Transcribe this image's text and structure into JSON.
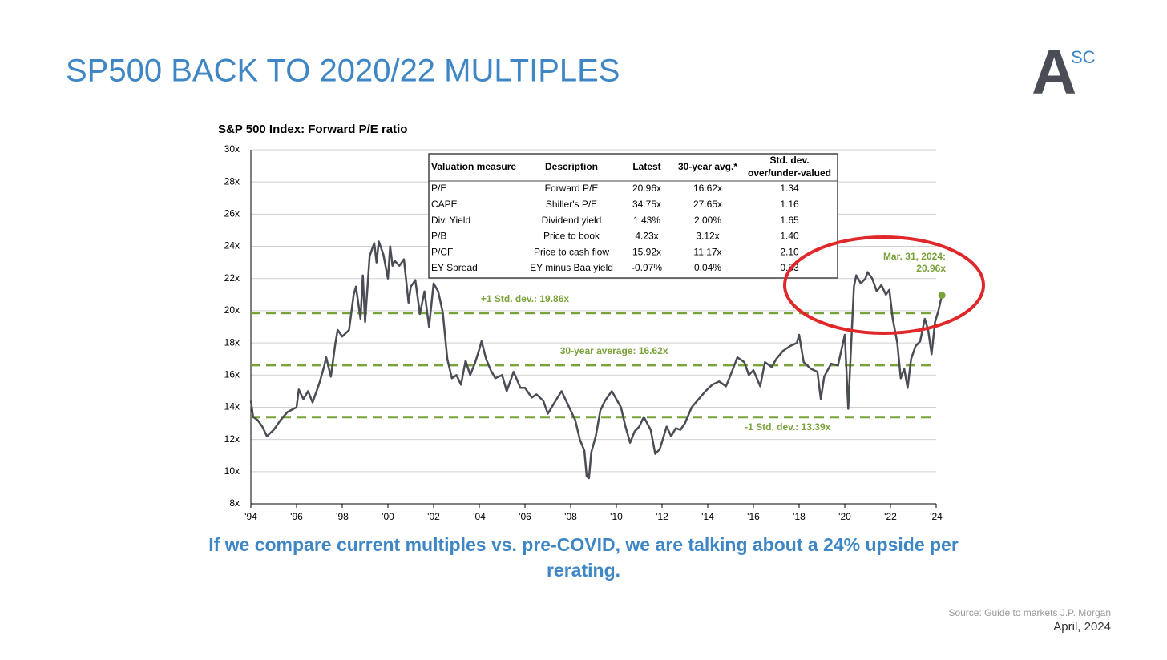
{
  "slide": {
    "title": "SP500 BACK TO 2020/22 MULTIPLES",
    "logo": {
      "letter": "A",
      "sup": "SC"
    },
    "caption": "If we compare current multiples vs. pre-COVID, we are talking about a 24% upside per rerating.",
    "source": "Source: Guide to markets J.P. Morgan",
    "date": "April, 2024"
  },
  "table": {
    "columns": [
      [
        "Valuation measure"
      ],
      [
        "Description"
      ],
      [
        "Latest"
      ],
      [
        "30-year avg.*"
      ],
      [
        "Std. dev.",
        "over/under-valued"
      ]
    ],
    "rows": [
      [
        "P/E",
        "Forward P/E",
        "20.96x",
        "16.62x",
        "1.34"
      ],
      [
        "CAPE",
        "Shiller's P/E",
        "34.75x",
        "27.65x",
        "1.16"
      ],
      [
        "Div. Yield",
        "Dividend yield",
        "1.43%",
        "2.00%",
        "1.65"
      ],
      [
        "P/B",
        "Price to book",
        "4.23x",
        "3.12x",
        "1.40"
      ],
      [
        "P/CF",
        "Price to cash flow",
        "15.92x",
        "11.17x",
        "2.10"
      ],
      [
        "EY Spread",
        "EY minus Baa yield",
        "-0.97%",
        "0.04%",
        "0.53"
      ]
    ]
  },
  "chart_data": {
    "type": "line",
    "title": "S&P 500 Index: Forward P/E ratio",
    "color": "#4a4d55",
    "end_color": "#7aa23a",
    "x": [
      1994.0,
      1994.1,
      1994.3,
      1994.5,
      1994.7,
      1995.0,
      1995.3,
      1995.6,
      1996.0,
      1996.1,
      1996.3,
      1996.5,
      1996.7,
      1997.0,
      1997.2,
      1997.3,
      1997.5,
      1997.7,
      1997.8,
      1998.0,
      1998.3,
      1998.5,
      1998.6,
      1998.8,
      1998.9,
      1999.0,
      1999.2,
      1999.4,
      1999.5,
      1999.6,
      1999.8,
      2000.0,
      2000.1,
      2000.2,
      2000.3,
      2000.5,
      2000.7,
      2000.9,
      2001.0,
      2001.2,
      2001.4,
      2001.6,
      2001.8,
      2002.0,
      2002.2,
      2002.4,
      2002.6,
      2002.8,
      2003.0,
      2003.2,
      2003.4,
      2003.6,
      2003.8,
      2004.0,
      2004.1,
      2004.3,
      2004.5,
      2004.7,
      2005.0,
      2005.2,
      2005.5,
      2005.8,
      2006.0,
      2006.3,
      2006.5,
      2006.8,
      2007.0,
      2007.3,
      2007.6,
      2007.8,
      2008.0,
      2008.2,
      2008.4,
      2008.6,
      2008.7,
      2008.8,
      2008.9,
      2009.1,
      2009.3,
      2009.5,
      2009.8,
      2010.0,
      2010.2,
      2010.4,
      2010.6,
      2010.8,
      2011.0,
      2011.2,
      2011.5,
      2011.7,
      2011.9,
      2012.2,
      2012.4,
      2012.6,
      2012.8,
      2013.0,
      2013.3,
      2013.6,
      2013.9,
      2014.2,
      2014.5,
      2014.8,
      2015.0,
      2015.3,
      2015.6,
      2015.8,
      2016.0,
      2016.3,
      2016.5,
      2016.8,
      2017.0,
      2017.3,
      2017.6,
      2017.9,
      2018.0,
      2018.2,
      2018.5,
      2018.8,
      2018.95,
      2019.1,
      2019.4,
      2019.7,
      2020.0,
      2020.15,
      2020.25,
      2020.4,
      2020.5,
      2020.7,
      2020.9,
      2021.0,
      2021.2,
      2021.4,
      2021.6,
      2021.8,
      2021.95,
      2022.1,
      2022.3,
      2022.45,
      2022.6,
      2022.75,
      2022.9,
      2023.1,
      2023.3,
      2023.5,
      2023.65,
      2023.8,
      2023.95,
      2024.1,
      2024.25
    ],
    "values": [
      14.4,
      13.4,
      13.2,
      12.8,
      12.2,
      12.6,
      13.2,
      13.7,
      14.0,
      15.1,
      14.5,
      15.0,
      14.3,
      15.5,
      16.5,
      17.1,
      15.9,
      18.0,
      18.8,
      18.4,
      18.8,
      21.0,
      21.5,
      19.5,
      22.2,
      19.3,
      23.4,
      24.2,
      23.0,
      24.3,
      23.5,
      22.0,
      24.0,
      22.8,
      23.1,
      22.8,
      23.2,
      20.5,
      21.5,
      21.9,
      19.8,
      21.2,
      19.0,
      21.7,
      21.2,
      19.9,
      17.0,
      15.8,
      16.0,
      15.4,
      16.9,
      16.0,
      16.7,
      17.6,
      18.1,
      17.0,
      16.3,
      15.8,
      16.0,
      15.0,
      16.2,
      15.2,
      15.2,
      14.6,
      14.8,
      14.4,
      13.6,
      14.3,
      15.0,
      14.4,
      13.8,
      13.2,
      12.0,
      11.3,
      9.7,
      9.6,
      11.2,
      12.2,
      13.8,
      14.4,
      15.0,
      14.5,
      14.0,
      12.8,
      11.8,
      12.5,
      12.8,
      13.4,
      12.6,
      11.1,
      11.4,
      12.8,
      12.2,
      12.7,
      12.6,
      13.0,
      14.0,
      14.5,
      15.0,
      15.4,
      15.6,
      15.3,
      16.0,
      17.1,
      16.8,
      16.0,
      16.3,
      15.3,
      16.8,
      16.5,
      17.0,
      17.5,
      17.8,
      18.0,
      18.5,
      16.8,
      16.4,
      16.2,
      14.5,
      15.9,
      16.7,
      16.6,
      18.5,
      13.9,
      17.0,
      21.5,
      22.2,
      21.7,
      22.0,
      22.4,
      22.0,
      21.2,
      21.6,
      21.0,
      21.3,
      19.5,
      18.0,
      15.8,
      16.4,
      15.2,
      17.0,
      17.8,
      18.1,
      19.5,
      18.8,
      17.3,
      19.3,
      20.0,
      20.96
    ],
    "xlim": [
      1994,
      2024
    ],
    "xticks": [
      {
        "value": 1994,
        "label": "'94"
      },
      {
        "value": 1996,
        "label": "'96"
      },
      {
        "value": 1998,
        "label": "'98"
      },
      {
        "value": 2000,
        "label": "'00"
      },
      {
        "value": 2002,
        "label": "'02"
      },
      {
        "value": 2004,
        "label": "'04"
      },
      {
        "value": 2006,
        "label": "'06"
      },
      {
        "value": 2008,
        "label": "'08"
      },
      {
        "value": 2010,
        "label": "'10"
      },
      {
        "value": 2012,
        "label": "'12"
      },
      {
        "value": 2014,
        "label": "'14"
      },
      {
        "value": 2016,
        "label": "'16"
      },
      {
        "value": 2018,
        "label": "'18"
      },
      {
        "value": 2020,
        "label": "'20"
      },
      {
        "value": 2022,
        "label": "'22"
      },
      {
        "value": 2024,
        "label": "'24"
      }
    ],
    "ylim": [
      8,
      30
    ],
    "yticks": [
      {
        "value": 8,
        "label": "8x"
      },
      {
        "value": 10,
        "label": "10x"
      },
      {
        "value": 12,
        "label": "12x"
      },
      {
        "value": 14,
        "label": "14x"
      },
      {
        "value": 16,
        "label": "16x"
      },
      {
        "value": 18,
        "label": "18x"
      },
      {
        "value": 20,
        "label": "20x"
      },
      {
        "value": 22,
        "label": "22x"
      },
      {
        "value": 24,
        "label": "24x"
      },
      {
        "value": 26,
        "label": "26x"
      },
      {
        "value": 28,
        "label": "28x"
      },
      {
        "value": 30,
        "label": "30x"
      }
    ],
    "grid": true,
    "reference_lines": [
      {
        "label": "+1 Std. dev.: 19.86x",
        "value": 19.86,
        "label_x": 2006
      },
      {
        "label": "30-year average: 16.62x",
        "value": 16.62,
        "label_x": 2009.9
      },
      {
        "label": "-1 Std. dev.: 13.39x",
        "value": 13.39,
        "label_x": 2017.5
      }
    ],
    "reference_color": "#7aa23a",
    "annotation": [
      "Mar. 31, 2024:",
      "20.96x"
    ]
  }
}
